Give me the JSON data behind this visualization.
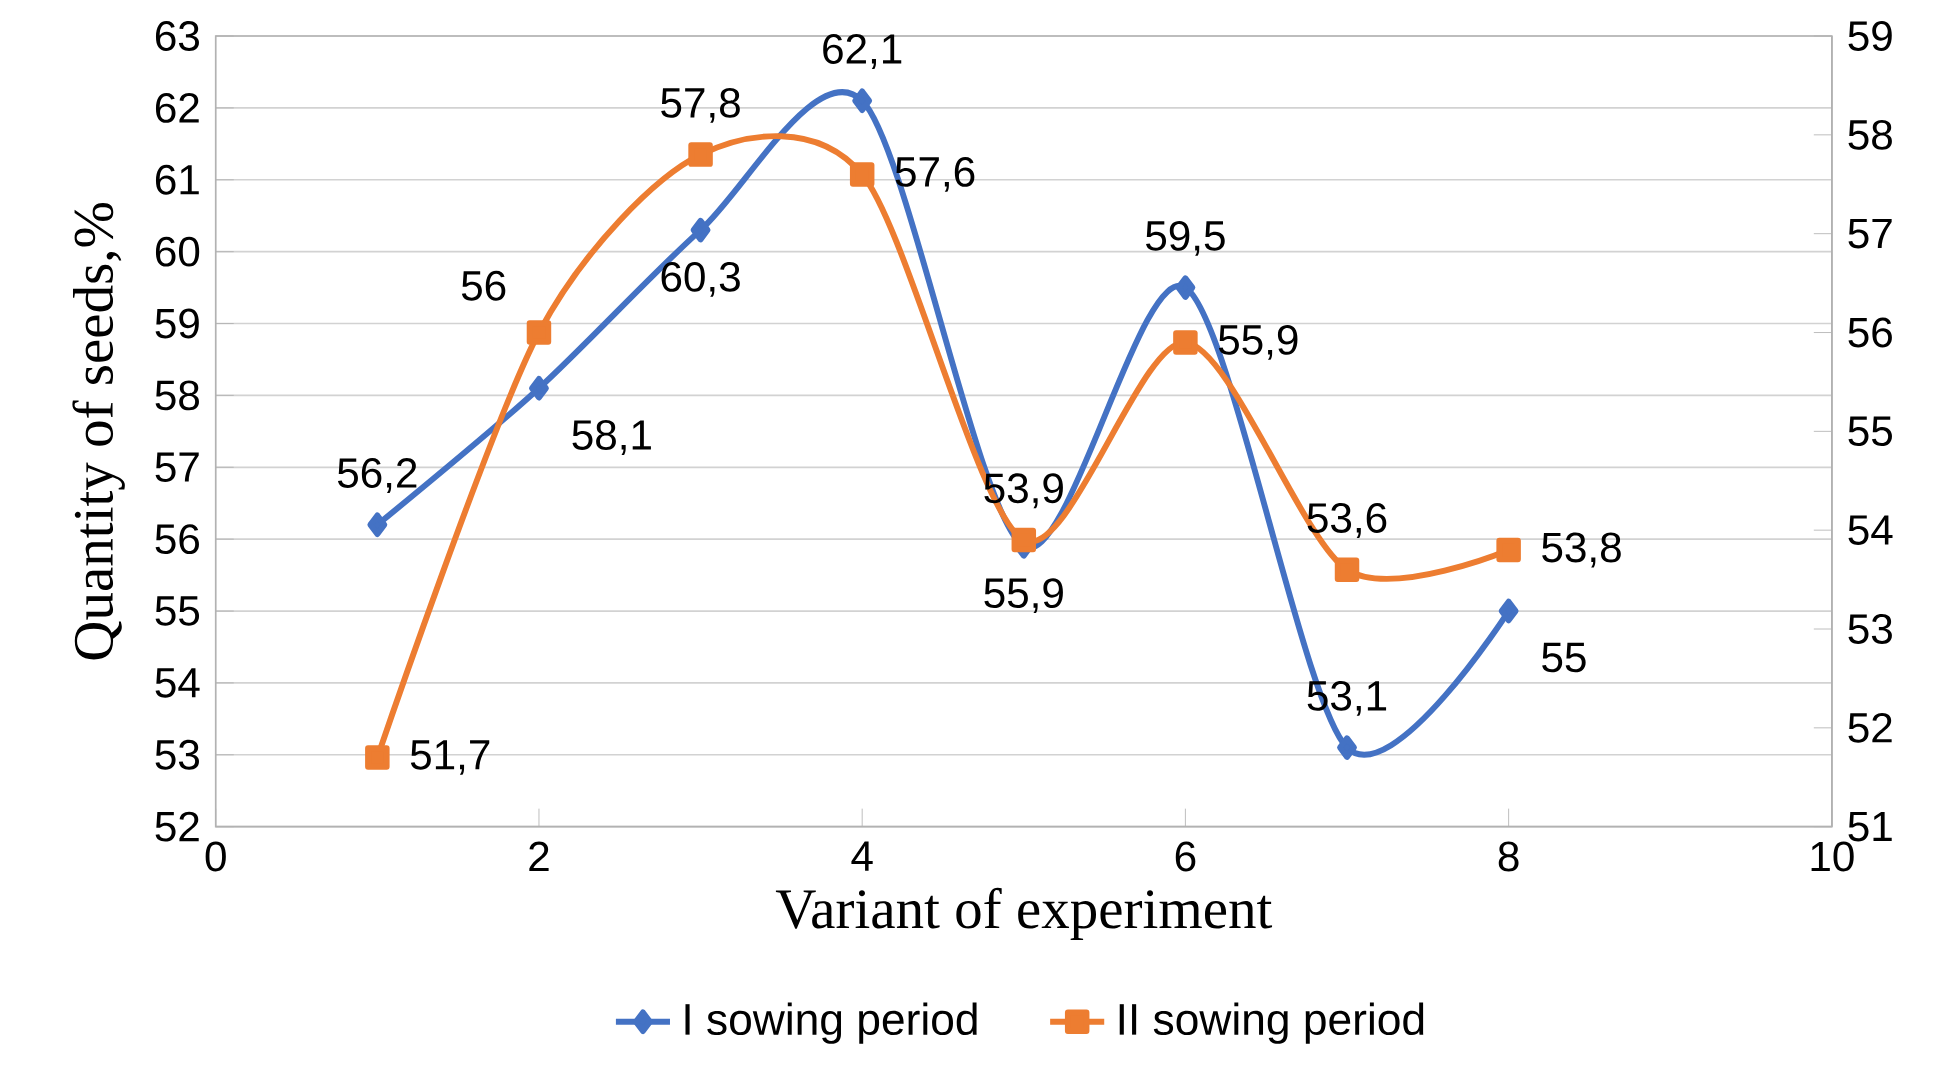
{
  "chart_data": {
    "type": "line",
    "xlabel": "Variant of experiment",
    "ylabel": "Quantity of seeds,%",
    "xlim": [
      0,
      10
    ],
    "xticks": [
      0,
      2,
      4,
      6,
      8,
      10
    ],
    "ylim": [
      52,
      63
    ],
    "yticks": [
      52,
      53,
      54,
      55,
      56,
      57,
      58,
      59,
      60,
      61,
      62,
      63
    ],
    "y2lim": [
      51,
      59
    ],
    "y2ticks": [
      51,
      52,
      53,
      54,
      55,
      56,
      57,
      58,
      59
    ],
    "grid": "y",
    "legend": "bottom",
    "line_style": "solid",
    "x": [
      1,
      2,
      3,
      4,
      5,
      6,
      7,
      8
    ],
    "series": [
      {
        "name": "I sowing period",
        "color": "#4472c4",
        "marker": "diamond",
        "values": [
          56.2,
          58.1,
          60.3,
          62.1,
          55.9,
          59.5,
          53.1,
          55
        ],
        "value_labels": [
          "56,2",
          "58,1",
          "60,3",
          "62,1",
          "55,9",
          "59,5",
          "53,1",
          "55"
        ]
      },
      {
        "name": "II sowing period",
        "color": "#ed7d31",
        "marker": "square",
        "axis": "y2",
        "values": [
          51.7,
          56,
          57.8,
          57.6,
          53.9,
          55.9,
          53.6,
          53.8
        ],
        "value_labels": [
          "51,7",
          "56",
          "57,8",
          "57,6",
          "53,9",
          "55,9",
          "53,6",
          "53,8"
        ]
      }
    ]
  }
}
